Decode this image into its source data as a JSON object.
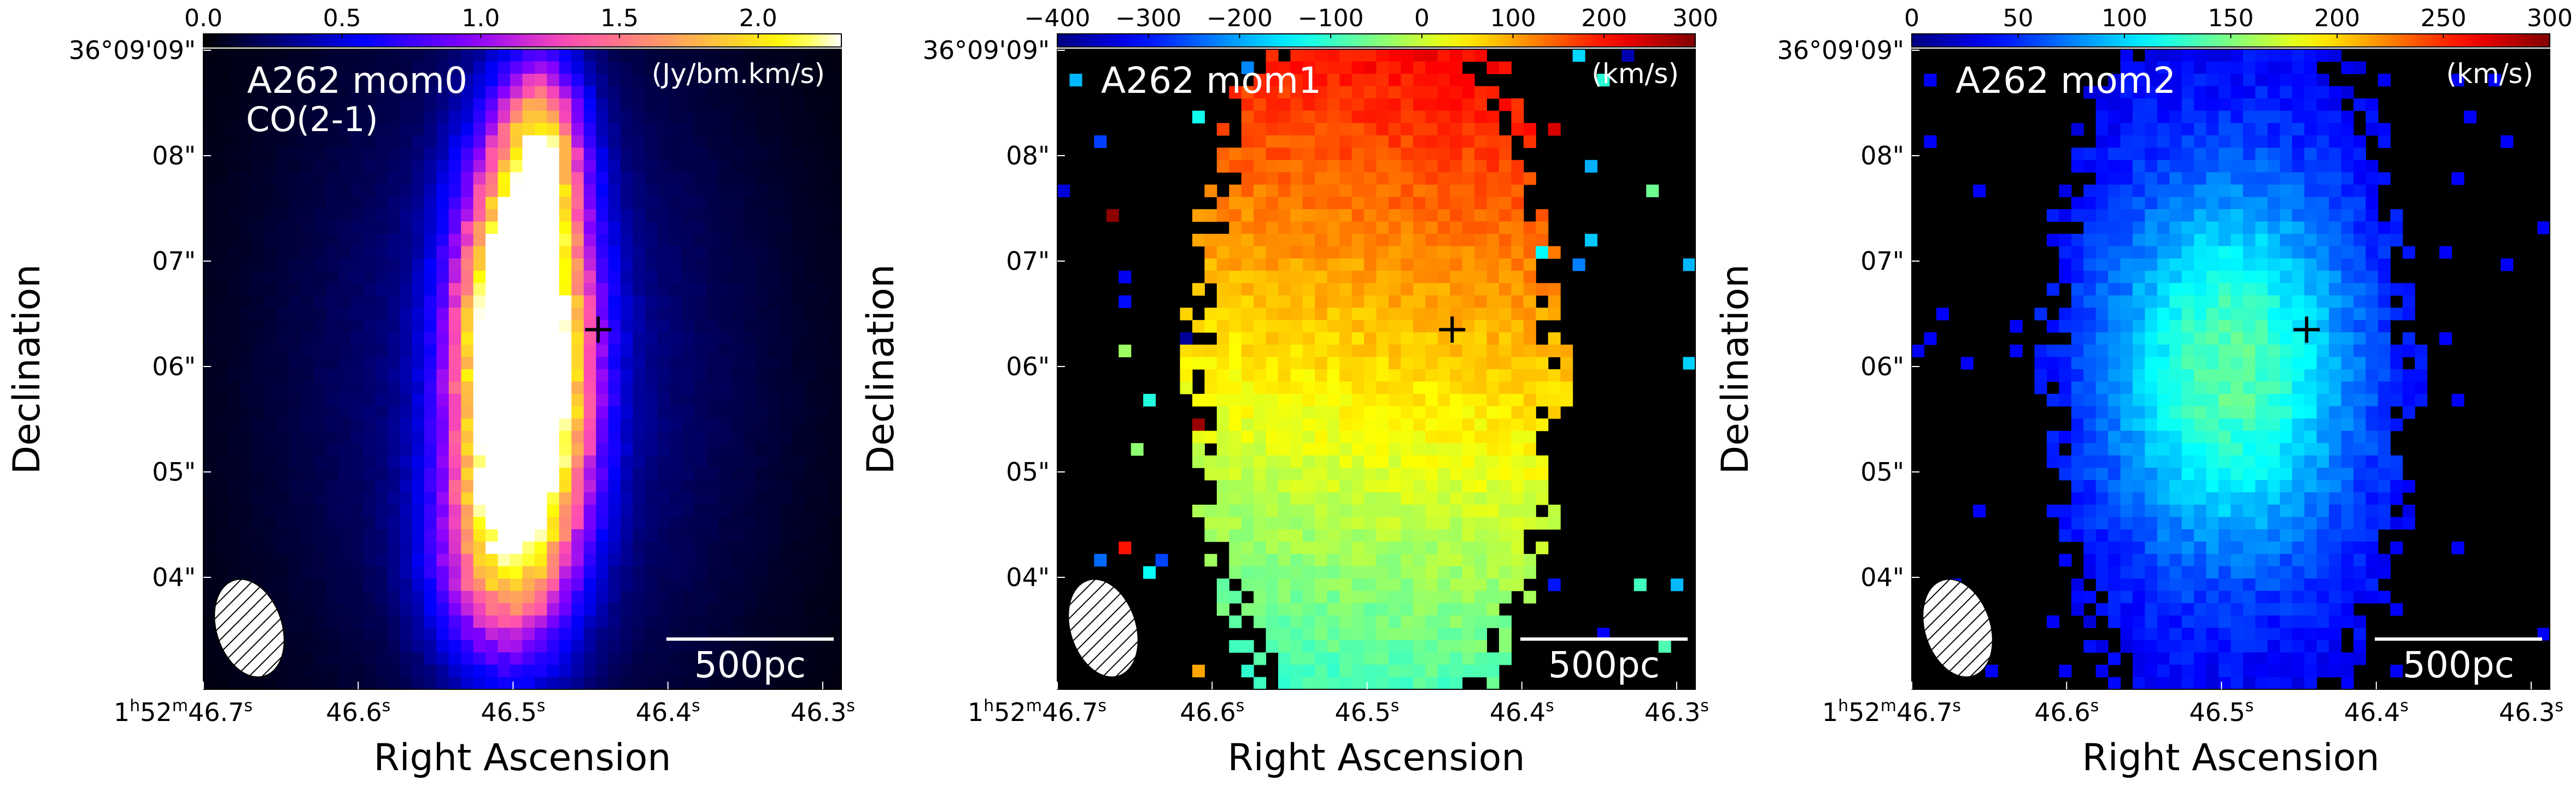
{
  "common": {
    "xlabel": "Right Ascension",
    "ylabel": "Declination",
    "ra_ticks": [
      {
        "h": "1",
        "m": "52",
        "s": "46.7",
        "hm": true
      },
      {
        "s": "46.6"
      },
      {
        "s": "46.5"
      },
      {
        "s": "46.4"
      },
      {
        "s": "46.3"
      }
    ],
    "dec_ticks": [
      {
        "label": "36°09'09\"",
        "sec": 9
      },
      {
        "label": "08\"",
        "sec": 8
      },
      {
        "label": "07\"",
        "sec": 7
      },
      {
        "label": "06\"",
        "sec": 6
      },
      {
        "label": "05\"",
        "sec": 5
      },
      {
        "label": "04\"",
        "sec": 4
      }
    ],
    "scalebar_label": "500pc",
    "center_marker": {
      "ra_s": 46.445,
      "dec_s": 6.35
    }
  },
  "chart_data": [
    {
      "type": "heatmap",
      "title": "A262 mom0",
      "subtitle": "CO(2-1)",
      "unit": "(Jy/bm.km/s)",
      "colormap": "gnuplot2",
      "colorbar_range": [
        0.0,
        2.3
      ],
      "colorbar_ticks": [
        "0.0",
        "0.5",
        "1.0",
        "1.5",
        "2.0"
      ],
      "colorbar_tick_values": [
        0.0,
        0.5,
        1.0,
        1.5,
        2.0
      ],
      "peak_value": 2.3
    },
    {
      "type": "heatmap",
      "title": "A262 mom1",
      "subtitle": "",
      "unit": "(km/s)",
      "colormap": "jet",
      "colorbar_range": [
        -400,
        300
      ],
      "colorbar_ticks": [
        "−400",
        "−300",
        "−200",
        "−100",
        "0",
        "100",
        "200",
        "300"
      ],
      "colorbar_tick_values": [
        -400,
        -300,
        -200,
        -100,
        0,
        100,
        200,
        300
      ],
      "gradient_north": 210,
      "gradient_south": -90
    },
    {
      "type": "heatmap",
      "title": "A262 mom2",
      "subtitle": "",
      "unit": "(km/s)",
      "colormap": "jet",
      "colorbar_range": [
        0,
        300
      ],
      "colorbar_ticks": [
        "0",
        "50",
        "100",
        "150",
        "200",
        "250",
        "300"
      ],
      "colorbar_tick_values": [
        0,
        50,
        100,
        150,
        200,
        250,
        300
      ],
      "peak_value": 140
    }
  ]
}
